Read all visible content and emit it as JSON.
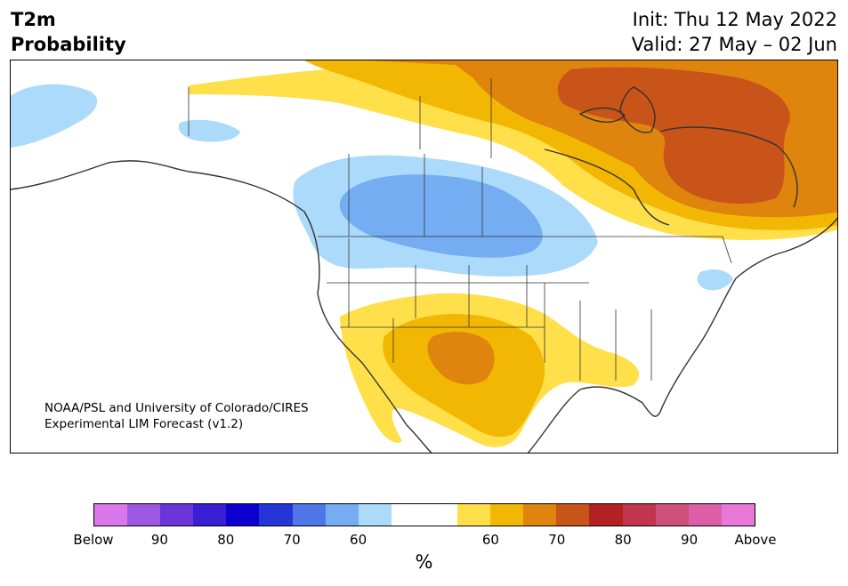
{
  "header": {
    "variable": "T2m",
    "product": "Probability",
    "init": "Init: Thu 12 May 2022",
    "valid": "Valid: 27 May – 02 Jun"
  },
  "map": {
    "credit_line1": "NOAA/PSL and University of Colorado/CIRES",
    "credit_line2": "Experimental LIM Forecast (v1.2)"
  },
  "colorbar": {
    "colors": [
      "#d977eb",
      "#9c57e3",
      "#6c35d9",
      "#3a1ed4",
      "#0b00cf",
      "#2536d8",
      "#4f76e6",
      "#75adf2",
      "#acdafa",
      "#ffffff",
      "#ffffff",
      "#ffe04a",
      "#f2b703",
      "#df840d",
      "#c8541a",
      "#b22222",
      "#c0364e",
      "#d0507c",
      "#de5fa8",
      "#ea78d9"
    ],
    "tick_labels": [
      "Below",
      "90",
      "80",
      "70",
      "60",
      "60",
      "70",
      "80",
      "90",
      "Above"
    ],
    "unit": "%"
  }
}
